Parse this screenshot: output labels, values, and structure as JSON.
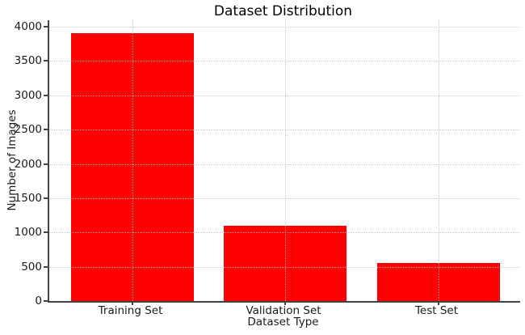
{
  "chart_data": {
    "type": "bar",
    "title": "Dataset Distribution",
    "xlabel": "Dataset Type",
    "ylabel": "Number of Images",
    "categories": [
      "Training Set",
      "Validation Set",
      "Test Set"
    ],
    "values": [
      3900,
      1100,
      550
    ],
    "yticks": [
      0,
      500,
      1000,
      1500,
      2000,
      2500,
      3000,
      3500,
      4000
    ],
    "ylim": [
      0,
      4094
    ],
    "legend": "none",
    "grid": "dotted, both axes, drawn above bars"
  },
  "colors": {
    "bar": "#ff0000",
    "grid": "#bebebe",
    "spine": "#444444",
    "text": "#1a1a1a",
    "background": "#ffffff"
  }
}
